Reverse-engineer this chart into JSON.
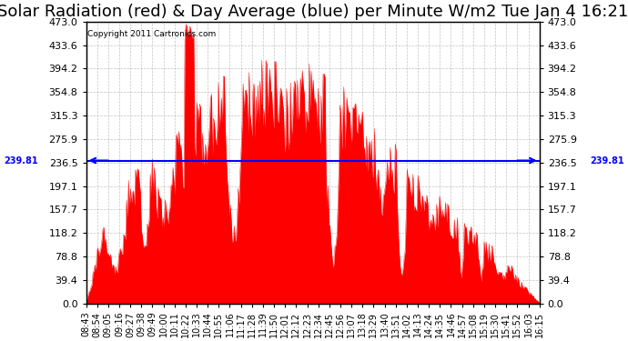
{
  "title": "Solar Radiation (red) & Day Average (blue) per Minute W/m2 Tue Jan 4 16:21",
  "copyright": "Copyright 2011 Cartronics.com",
  "day_average": 239.81,
  "ymax": 473.0,
  "ymin": 0.0,
  "yticks": [
    0.0,
    39.4,
    78.8,
    118.2,
    157.7,
    197.1,
    236.5,
    275.9,
    315.3,
    354.8,
    394.2,
    433.6,
    473.0
  ],
  "fill_color": "red",
  "line_color": "blue",
  "avg_label": "239.81",
  "background_color": "#ffffff",
  "grid_color": "#aaaaaa",
  "title_fontsize": 13,
  "xlabel_fontsize": 7,
  "ylabel_fontsize": 8,
  "xtick_labels": [
    "08:43",
    "08:54",
    "09:05",
    "09:16",
    "09:27",
    "09:38",
    "09:49",
    "10:00",
    "10:11",
    "10:22",
    "10:33",
    "10:44",
    "10:55",
    "11:06",
    "11:17",
    "11:28",
    "11:39",
    "11:50",
    "12:01",
    "12:12",
    "12:23",
    "12:34",
    "12:45",
    "12:56",
    "13:07",
    "13:18",
    "13:29",
    "13:40",
    "13:51",
    "14:02",
    "14:13",
    "14:24",
    "14:35",
    "14:46",
    "14:57",
    "15:08",
    "15:19",
    "15:30",
    "15:41",
    "15:52",
    "16:03",
    "16:15"
  ]
}
